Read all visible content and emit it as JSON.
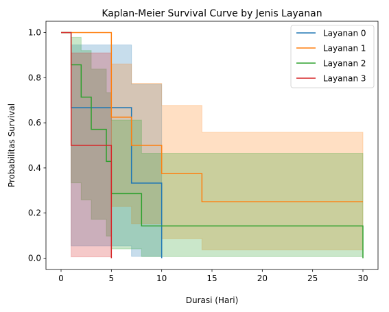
{
  "chart_data": {
    "type": "line",
    "title": "Kaplan-Meier Survival Curve by Jenis Layanan",
    "xlabel": "Durasi (Hari)",
    "ylabel": "Probabilitas Survival",
    "xlim": [
      -1.5,
      31.5
    ],
    "ylim": [
      -0.05,
      1.05
    ],
    "x_ticks": [
      0,
      5,
      10,
      15,
      20,
      25,
      30
    ],
    "y_ticks": [
      0.0,
      0.2,
      0.4,
      0.6,
      0.8,
      1.0
    ],
    "x_tick_labels": [
      "0",
      "5",
      "10",
      "15",
      "20",
      "25",
      "30"
    ],
    "y_tick_labels": [
      "0.0",
      "0.2",
      "0.4",
      "0.6",
      "0.8",
      "1.0"
    ],
    "grid": false,
    "legend_position": "top-right",
    "series": [
      {
        "name": "Layanan 0",
        "color": "#1f77b4",
        "steps": [
          [
            0,
            1.0
          ],
          [
            1,
            0.667
          ],
          [
            7,
            0.333
          ],
          [
            10,
            0.0
          ]
        ],
        "ci_steps": [
          [
            0,
            1.0,
            1.0
          ],
          [
            1,
            0.054,
            0.945
          ],
          [
            7,
            0.008,
            0.771
          ],
          [
            10,
            0.0,
            0.0
          ]
        ]
      },
      {
        "name": "Layanan 1",
        "color": "#ff7f0e",
        "steps": [
          [
            0,
            1.0
          ],
          [
            5,
            0.625
          ],
          [
            7,
            0.5
          ],
          [
            10,
            0.375
          ],
          [
            14,
            0.25
          ],
          [
            30,
            0.25
          ]
        ],
        "ci_steps": [
          [
            0,
            1.0,
            1.0
          ],
          [
            5,
            0.229,
            0.861
          ],
          [
            7,
            0.152,
            0.775
          ],
          [
            10,
            0.087,
            0.677
          ],
          [
            14,
            0.037,
            0.558
          ],
          [
            30,
            0.037,
            0.558
          ]
        ]
      },
      {
        "name": "Layanan 2",
        "color": "#2ca02c",
        "steps": [
          [
            0,
            1.0
          ],
          [
            1,
            0.857
          ],
          [
            2,
            0.714
          ],
          [
            3,
            0.571
          ],
          [
            4.5,
            0.429
          ],
          [
            5,
            0.286
          ],
          [
            8,
            0.143
          ],
          [
            30,
            0.143
          ],
          [
            30,
            0.0
          ]
        ],
        "ci_steps": [
          [
            0,
            1.0,
            1.0
          ],
          [
            1,
            0.334,
            0.979
          ],
          [
            2,
            0.258,
            0.92
          ],
          [
            3,
            0.172,
            0.838
          ],
          [
            4.5,
            0.098,
            0.734
          ],
          [
            5,
            0.041,
            0.612
          ],
          [
            8,
            0.007,
            0.465
          ],
          [
            30,
            0.007,
            0.465
          ]
        ]
      },
      {
        "name": "Layanan 3",
        "color": "#d62728",
        "steps": [
          [
            0,
            1.0
          ],
          [
            1,
            0.5
          ],
          [
            5,
            0.0
          ]
        ],
        "ci_steps": [
          [
            0,
            1.0,
            1.0
          ],
          [
            1,
            0.006,
            0.91
          ],
          [
            5,
            0.0,
            0.0
          ]
        ]
      }
    ]
  }
}
